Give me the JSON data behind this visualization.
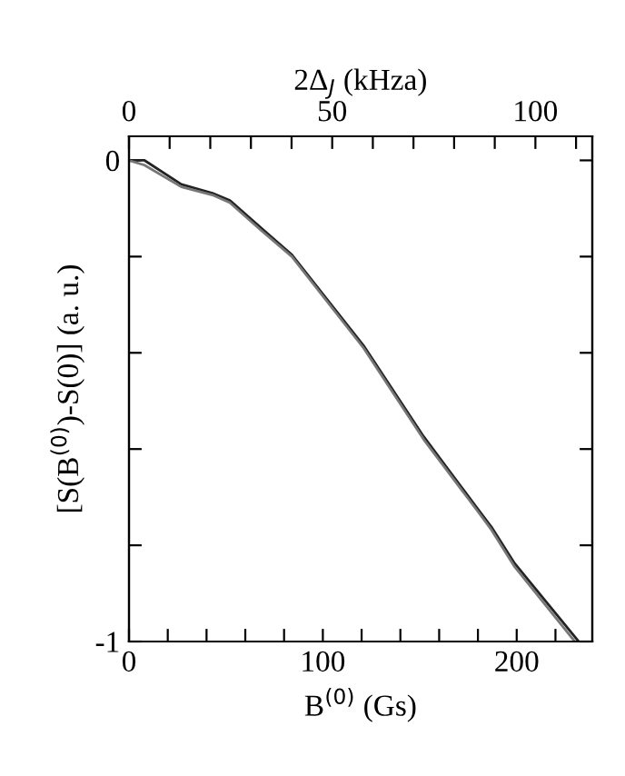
{
  "chart_data": {
    "type": "line",
    "xlabel": "B$^{(0)}$ (Gs)",
    "ylabel": "[S(B$^{(0)}$)-S(0)] (a. u.)",
    "x2label": "2Δ$_{J}$ (kHza)",
    "xlim": [
      0,
      239
    ],
    "xticks": [
      0,
      {
        "value": 20,
        "label": null
      },
      {
        "value": 40,
        "label": null
      },
      {
        "value": 60,
        "label": null
      },
      {
        "value": 80,
        "label": null
      },
      100,
      {
        "value": 120,
        "label": null
      },
      {
        "value": 140,
        "label": null
      },
      {
        "value": 160,
        "label": null
      },
      {
        "value": 180,
        "label": null
      },
      200,
      {
        "value": 220,
        "label": null
      }
    ],
    "x2lim": [
      0,
      114
    ],
    "x2ticks": [
      0,
      {
        "value": 10,
        "label": null
      },
      {
        "value": 20,
        "label": null
      },
      {
        "value": 30,
        "label": null
      },
      {
        "value": 40,
        "label": null
      },
      50,
      {
        "value": 60,
        "label": null
      },
      {
        "value": 70,
        "label": null
      },
      {
        "value": 80,
        "label": null
      },
      {
        "value": 90,
        "label": null
      },
      100,
      {
        "value": 110,
        "label": null
      }
    ],
    "ylim": [
      -1,
      0.05
    ],
    "yticks": [
      {
        "value": -1,
        "label": "-1"
      },
      {
        "value": -0.8,
        "label": null
      },
      {
        "value": -0.6,
        "label": null
      },
      {
        "value": -0.4,
        "label": null
      },
      {
        "value": -0.2,
        "label": null
      },
      0
    ],
    "grid": false,
    "legend": false,
    "line_style": "solid",
    "marker": "none",
    "series": [
      {
        "color": "#222222",
        "x": [
          0,
          8,
          27,
          43,
          52,
          68,
          84,
          121,
          152,
          180,
          187,
          199,
          232
        ],
        "values": [
          0,
          0,
          -0.05,
          -0.068,
          -0.083,
          -0.14,
          -0.196,
          -0.385,
          -0.574,
          -0.725,
          -0.762,
          -0.838,
          -1.0
        ]
      },
      {
        "color": "#777777",
        "x": [
          0,
          8,
          27,
          43,
          52,
          68,
          84,
          121,
          152,
          180,
          187,
          199,
          230
        ],
        "values": [
          0,
          -0.01,
          -0.055,
          -0.072,
          -0.088,
          -0.145,
          -0.2,
          -0.39,
          -0.58,
          -0.73,
          -0.768,
          -0.845,
          -1.0
        ]
      }
    ]
  }
}
